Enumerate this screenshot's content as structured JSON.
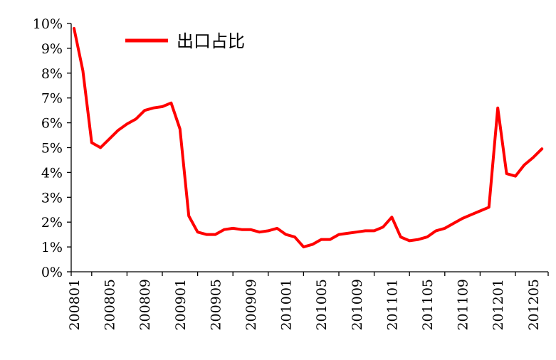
{
  "chart_data": {
    "type": "line",
    "title": "",
    "xlabel": "",
    "ylabel": "",
    "ylim": [
      0,
      10
    ],
    "yticks": [
      "0%",
      "1%",
      "2%",
      "3%",
      "4%",
      "5%",
      "6%",
      "7%",
      "8%",
      "9%",
      "10%"
    ],
    "xtick_labels": [
      "200801",
      "200805",
      "200809",
      "200901",
      "200905",
      "200909",
      "201001",
      "201005",
      "201009",
      "201101",
      "201105",
      "201109",
      "201201",
      "201205"
    ],
    "legend": {
      "position": "top-left"
    },
    "grid": false,
    "series": [
      {
        "name": "出口占比",
        "color": "#ff0000",
        "x": [
          "200801",
          "200802",
          "200803",
          "200804",
          "200805",
          "200806",
          "200807",
          "200808",
          "200809",
          "200810",
          "200811",
          "200812",
          "200901",
          "200902",
          "200903",
          "200904",
          "200905",
          "200906",
          "200907",
          "200908",
          "200909",
          "200910",
          "200911",
          "200912",
          "201001",
          "201002",
          "201003",
          "201004",
          "201005",
          "201006",
          "201007",
          "201008",
          "201009",
          "201010",
          "201011",
          "201012",
          "201101",
          "201102",
          "201103",
          "201104",
          "201105",
          "201106",
          "201107",
          "201108",
          "201109",
          "201110",
          "201111",
          "201112",
          "201201",
          "201202",
          "201203",
          "201204",
          "201205",
          "201206"
        ],
        "values": [
          9.8,
          8.1,
          5.2,
          5.0,
          5.35,
          5.7,
          5.95,
          6.15,
          6.5,
          6.6,
          6.65,
          6.8,
          5.75,
          2.25,
          1.6,
          1.5,
          1.5,
          1.7,
          1.75,
          1.7,
          1.7,
          1.6,
          1.65,
          1.75,
          1.5,
          1.4,
          1.0,
          1.1,
          1.3,
          1.3,
          1.5,
          1.55,
          1.6,
          1.65,
          1.65,
          1.8,
          2.2,
          1.4,
          1.25,
          1.3,
          1.4,
          1.65,
          1.75,
          1.95,
          2.15,
          2.3,
          2.45,
          2.6,
          6.6,
          3.95,
          3.85,
          4.3,
          4.6,
          4.95
        ]
      }
    ]
  }
}
